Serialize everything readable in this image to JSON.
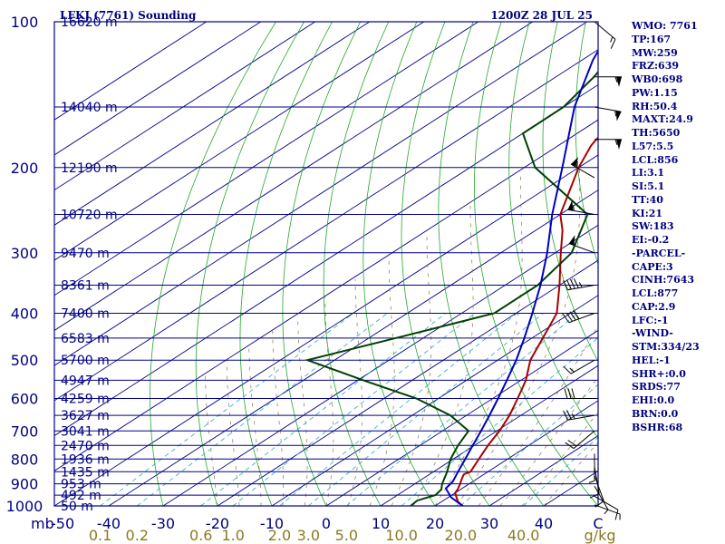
{
  "title": "LFKJ (7761) Sounding",
  "timestamp": "1200Z 28 JUL 25",
  "indices": [
    "WMO: 7761",
    "TP:167",
    "MW:259",
    "FRZ:639",
    "WB0:698",
    "PW:1.15",
    "RH:50.4",
    "MAXT:24.9",
    "TH:5650",
    "L57:5.5",
    "LCL:856",
    "LI:3.1",
    "SI:5.1",
    "TT:40",
    "KI:21",
    "SW:183",
    "EI:-0.2",
    "-PARCEL-",
    "CAPE:3",
    "CINH:7643",
    "LCL:877",
    "CAP:2.9",
    "LFC:-1",
    "-WIND-",
    "STM:334/23",
    "HEL:-1",
    "SHR+:0.0",
    "SRDS:77",
    "EHI:0.0",
    "BRN:0.0",
    "BSHR:68"
  ],
  "chart_data": {
    "type": "line",
    "subtype": "skew-T log-P sounding",
    "y_axis": {
      "scale": "log",
      "unit": "mb",
      "range": [
        1000,
        100
      ],
      "ticks": [
        100,
        200,
        300,
        400,
        500,
        600,
        700,
        800,
        900,
        1000
      ],
      "tick_labels": [
        "100",
        "200",
        "300",
        "400",
        "500",
        "600",
        "700",
        "800",
        "900",
        "1000"
      ]
    },
    "x_axis": {
      "unit": "C",
      "range": [
        -50,
        50
      ],
      "ticks": [
        -50,
        -40,
        -30,
        -20,
        -10,
        0,
        10,
        20,
        30,
        40,
        50
      ],
      "tick_labels": [
        "-50",
        "-40",
        "-30",
        "-20",
        "-10",
        "0",
        "10",
        "20",
        "30",
        "40",
        "C"
      ],
      "corner_label": "mb"
    },
    "mixing_ratio_axis": {
      "unit": "g/kg",
      "values": [
        0.1,
        0.2,
        0.6,
        1.0,
        2.0,
        3.0,
        5.0,
        10.0,
        20.0,
        40.0
      ],
      "labels": [
        "0.1",
        "0.2",
        "0.6",
        "1.0",
        "2.0",
        "3.0",
        "5.0",
        "10.0",
        "20.0",
        "40.0",
        "g/kg"
      ]
    },
    "height_labels": [
      {
        "p": 100,
        "label": "16620 m"
      },
      {
        "p": 150,
        "label": "14040 m"
      },
      {
        "p": 200,
        "label": "12190 m"
      },
      {
        "p": 250,
        "label": "10720 m"
      },
      {
        "p": 300,
        "label": "9470 m"
      },
      {
        "p": 350,
        "label": "8361 m"
      },
      {
        "p": 400,
        "label": "7400 m"
      },
      {
        "p": 450,
        "label": "6583 m"
      },
      {
        "p": 500,
        "label": "5700 m"
      },
      {
        "p": 550,
        "label": "4947 m"
      },
      {
        "p": 600,
        "label": "4259 m"
      },
      {
        "p": 650,
        "label": "3627 m"
      },
      {
        "p": 700,
        "label": "3041 m"
      },
      {
        "p": 750,
        "label": "2470 m"
      },
      {
        "p": 800,
        "label": "1936 m"
      },
      {
        "p": 850,
        "label": "1435 m"
      },
      {
        "p": 900,
        "label": "953 m"
      },
      {
        "p": 950,
        "label": "492 m"
      },
      {
        "p": 1000,
        "label": "50 m"
      }
    ],
    "series": [
      {
        "key": "temperature",
        "color": "#aa0000",
        "points": [
          [
            1000,
            25.1
          ],
          [
            980,
            23.0
          ],
          [
            960,
            21.5
          ],
          [
            940,
            20.0
          ],
          [
            925,
            19.5
          ],
          [
            900,
            18.3
          ],
          [
            875,
            17.0
          ],
          [
            860,
            16.3
          ],
          [
            850,
            16.8
          ],
          [
            800,
            14.7
          ],
          [
            750,
            12.5
          ],
          [
            700,
            10.5
          ],
          [
            650,
            7.9
          ],
          [
            600,
            4.6
          ],
          [
            550,
            0.9
          ],
          [
            500,
            -4.0
          ],
          [
            450,
            -8.0
          ],
          [
            400,
            -12.5
          ],
          [
            350,
            -20.0
          ],
          [
            300,
            -29.0
          ],
          [
            270,
            -35.0
          ],
          [
            250,
            -40.0
          ],
          [
            200,
            -50.0
          ],
          [
            180,
            -54.0
          ],
          [
            160,
            -57.0
          ],
          [
            150,
            -56.0
          ],
          [
            130,
            -60.0
          ],
          [
            100,
            -63.0
          ]
        ]
      },
      {
        "key": "dewpoint",
        "color": "#004000",
        "points": [
          [
            1000,
            15.5
          ],
          [
            975,
            15.2
          ],
          [
            950,
            17.0
          ],
          [
            925,
            16.5
          ],
          [
            900,
            15.0
          ],
          [
            850,
            12.5
          ],
          [
            800,
            9.5
          ],
          [
            750,
            7.0
          ],
          [
            700,
            4.8
          ],
          [
            650,
            -3.0
          ],
          [
            600,
            -14.0
          ],
          [
            550,
            -29.0
          ],
          [
            500,
            -45.0
          ],
          [
            450,
            -35.0
          ],
          [
            400,
            -24.0
          ],
          [
            350,
            -24.0
          ],
          [
            300,
            -27.0
          ],
          [
            250,
            -35.0
          ],
          [
            200,
            -58.0
          ],
          [
            170,
            -70.0
          ],
          [
            150,
            -70.0
          ],
          [
            130,
            -73.0
          ],
          [
            100,
            -80.0
          ]
        ]
      },
      {
        "key": "parcel",
        "color": "#0000c0",
        "points": [
          [
            1000,
            25.1
          ],
          [
            960,
            20.5
          ],
          [
            920,
            17.0
          ],
          [
            890,
            16.3
          ],
          [
            850,
            14.5
          ],
          [
            800,
            12.2
          ],
          [
            750,
            9.7
          ],
          [
            700,
            7.1
          ],
          [
            650,
            4.2
          ],
          [
            600,
            1.0
          ],
          [
            550,
            -2.6
          ],
          [
            500,
            -6.6
          ],
          [
            450,
            -11.4
          ],
          [
            400,
            -17.0
          ],
          [
            350,
            -23.5
          ],
          [
            300,
            -31.5
          ],
          [
            250,
            -41.5
          ],
          [
            200,
            -53.0
          ],
          [
            150,
            -68.0
          ],
          [
            120,
            -78.0
          ],
          [
            105,
            -83.0
          ]
        ]
      }
    ],
    "wind_barbs": [
      {
        "p": 995,
        "dir": 110,
        "spd": 5
      },
      {
        "p": 955,
        "dir": 120,
        "spd": 10
      },
      {
        "p": 910,
        "dir": 150,
        "spd": 5
      },
      {
        "p": 865,
        "dir": 160,
        "spd": 10
      },
      {
        "p": 830,
        "dir": 170,
        "spd": 10
      },
      {
        "p": 780,
        "dir": 180,
        "spd": 5
      },
      {
        "p": 700,
        "dir": 230,
        "spd": 20
      },
      {
        "p": 650,
        "dir": 260,
        "spd": 25
      },
      {
        "p": 600,
        "dir": 270,
        "spd": 30
      },
      {
        "p": 500,
        "dir": 240,
        "spd": 15
      },
      {
        "p": 400,
        "dir": 250,
        "spd": 40
      },
      {
        "p": 350,
        "dir": 260,
        "spd": 45
      },
      {
        "p": 300,
        "dir": 290,
        "spd": 50
      },
      {
        "p": 250,
        "dir": 280,
        "spd": 55
      },
      {
        "p": 210,
        "dir": 300,
        "spd": 55
      },
      {
        "p": 175,
        "dir": 90,
        "spd": 55
      },
      {
        "p": 150,
        "dir": 100,
        "spd": 55
      },
      {
        "p": 130,
        "dir": 90,
        "spd": 55
      },
      {
        "p": 100,
        "dir": 130,
        "spd": 15
      }
    ]
  }
}
